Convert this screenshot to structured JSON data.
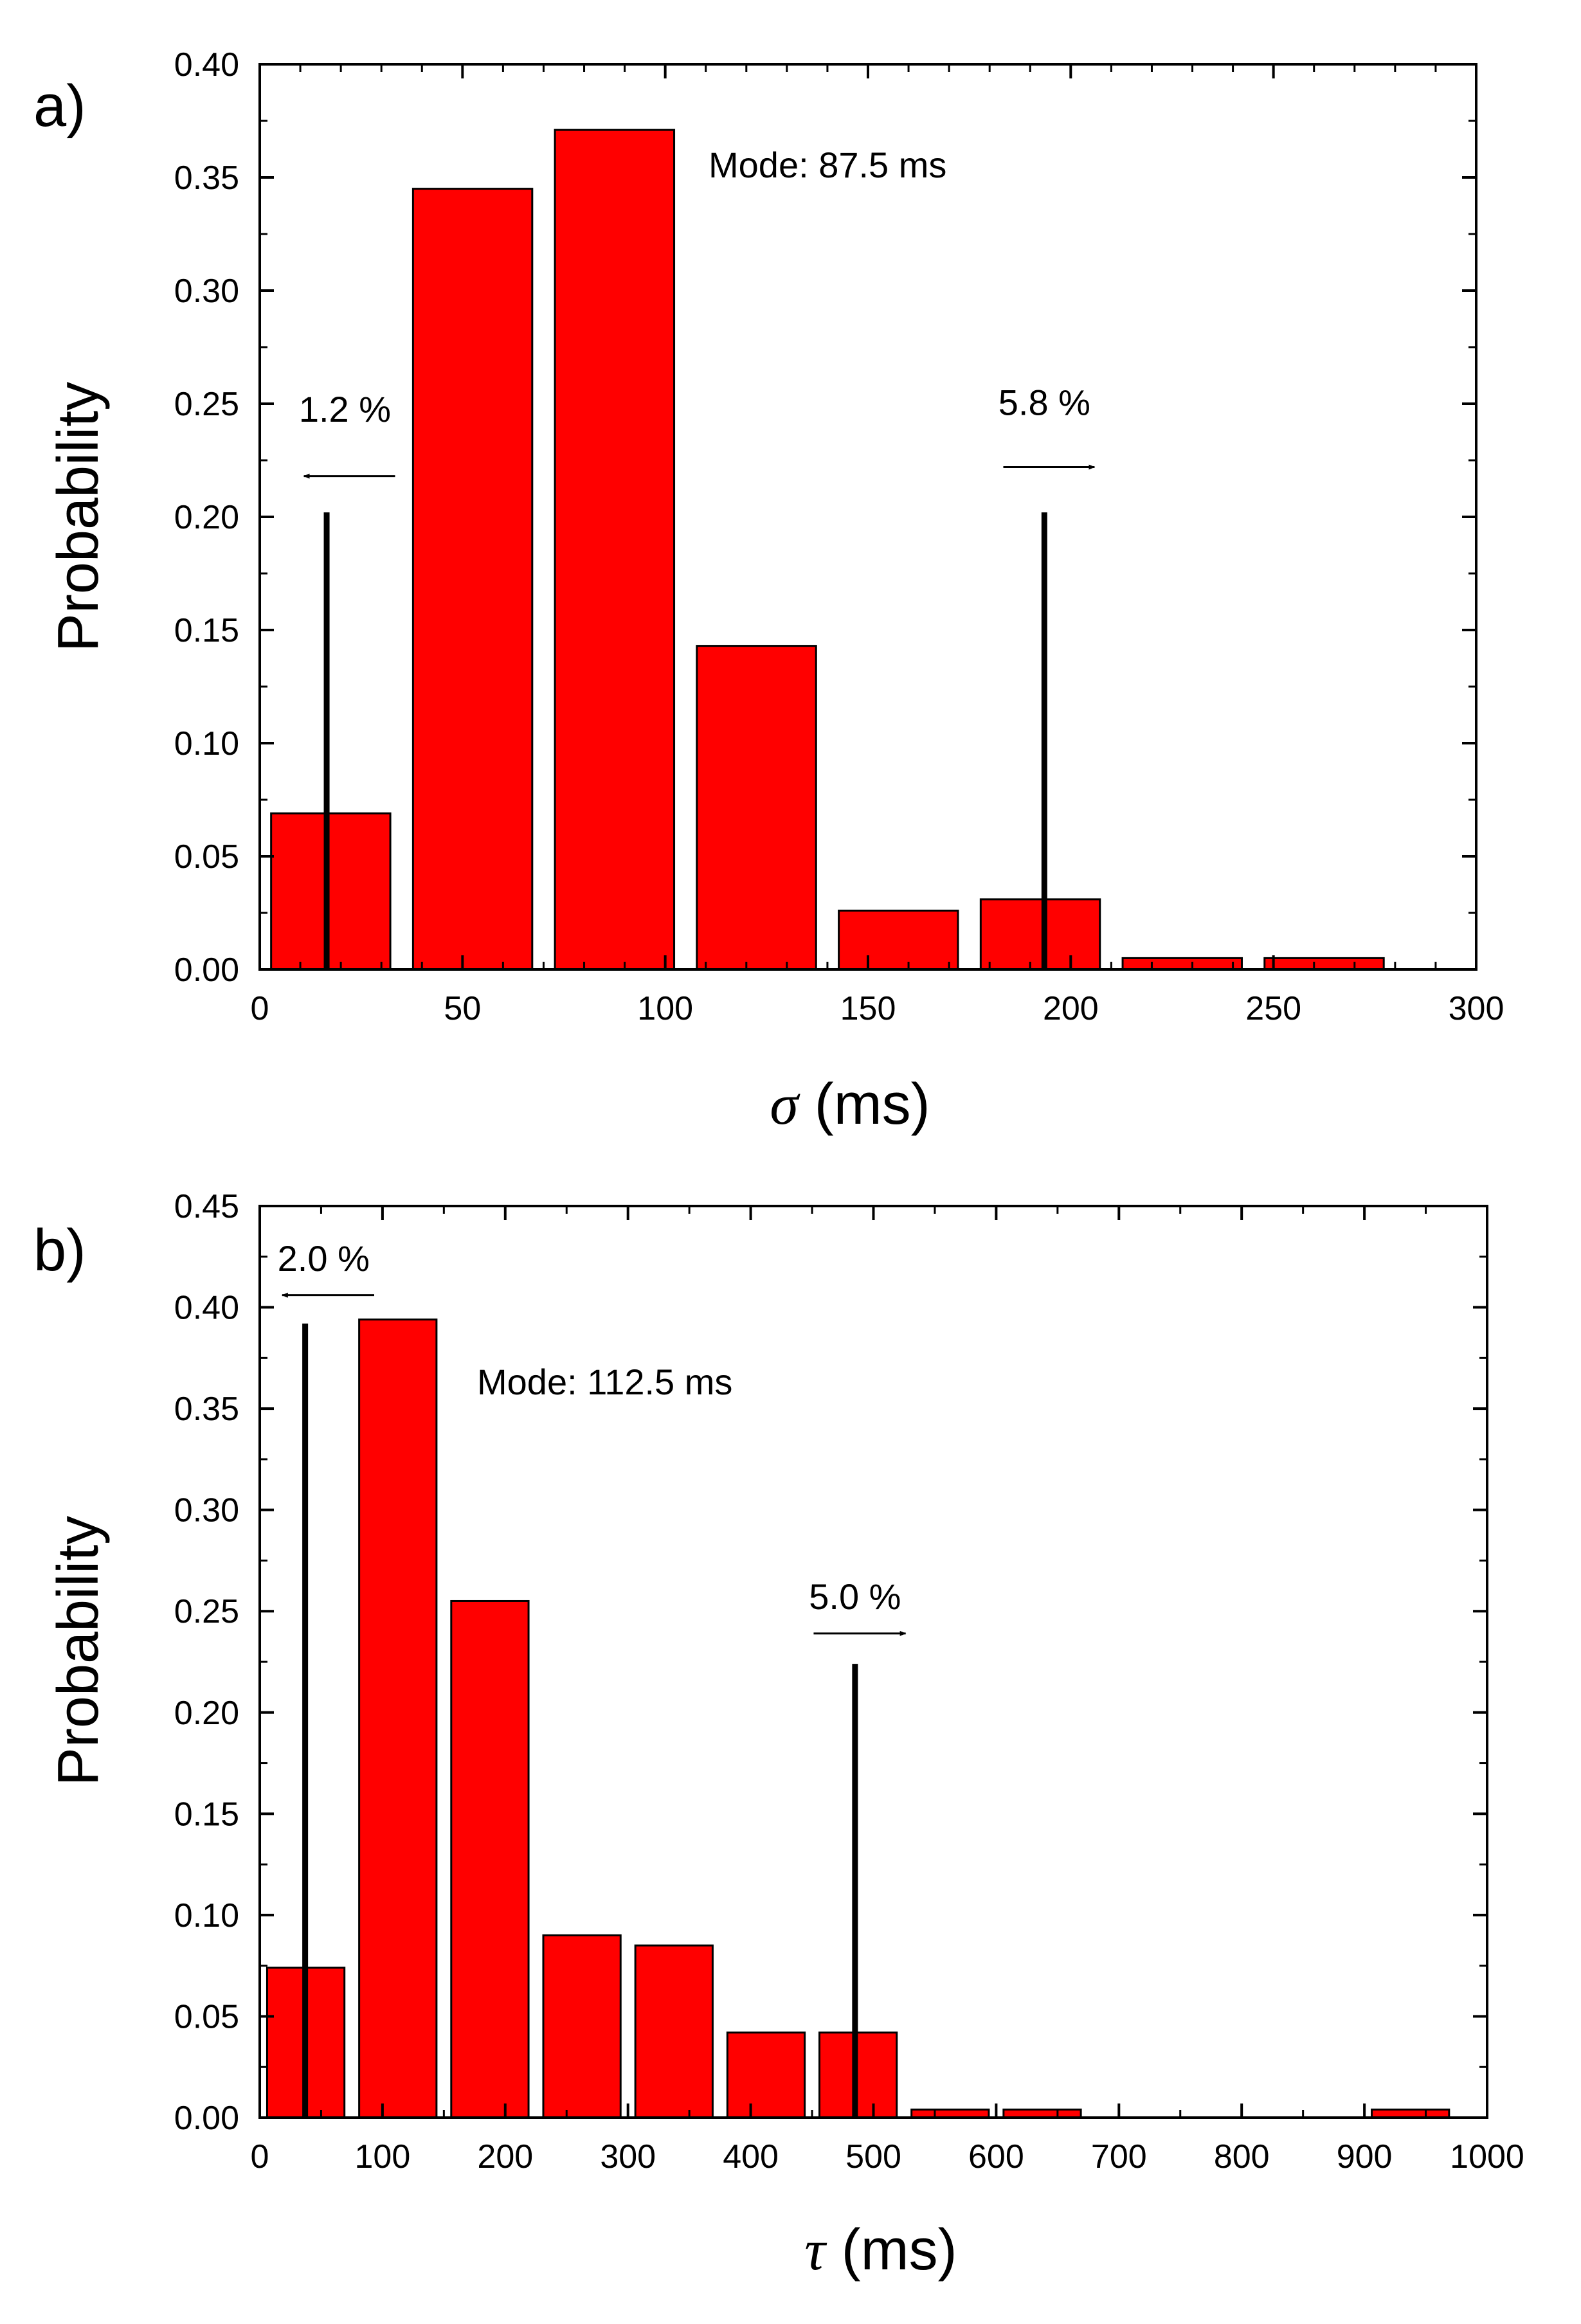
{
  "chart_data": [
    {
      "panel_label": "a)",
      "type": "bar",
      "x_label": "(ms)",
      "x_symbol": "σ",
      "ylabel": "Probability",
      "xlim": [
        0,
        300
      ],
      "ylim": [
        0,
        0.4
      ],
      "x_ticks": [
        "0",
        "50",
        "100",
        "150",
        "200",
        "250",
        "300"
      ],
      "y_ticks": [
        "0.00",
        "0.05",
        "0.10",
        "0.15",
        "0.20",
        "0.25",
        "0.30",
        "0.35",
        "0.40"
      ],
      "bin_width": 35,
      "bins": [
        {
          "center": 17.5,
          "value": 0.069
        },
        {
          "center": 52.5,
          "value": 0.345
        },
        {
          "center": 87.5,
          "value": 0.371
        },
        {
          "center": 122.5,
          "value": 0.143
        },
        {
          "center": 157.5,
          "value": 0.026
        },
        {
          "center": 192.5,
          "value": 0.031
        },
        {
          "center": 227.5,
          "value": 0.005
        },
        {
          "center": 262.5,
          "value": 0.005
        }
      ],
      "mode_text": "Mode: 87.5 ms",
      "markers": [
        {
          "x": 16.5,
          "y_top": 0.202,
          "text": "1.2 %",
          "direction": "left"
        },
        {
          "x": 193.5,
          "y_top": 0.202,
          "text": "5.8 %",
          "direction": "right"
        }
      ]
    },
    {
      "panel_label": "b)",
      "type": "bar",
      "x_label": "(ms)",
      "x_symbol": "τ",
      "ylabel": "Probability",
      "xlim": [
        0,
        1000
      ],
      "ylim": [
        0,
        0.45
      ],
      "x_ticks": [
        "0",
        "100",
        "200",
        "300",
        "400",
        "500",
        "600",
        "700",
        "800",
        "900",
        "1000"
      ],
      "y_ticks": [
        "0.00",
        "0.05",
        "0.10",
        "0.15",
        "0.20",
        "0.25",
        "0.30",
        "0.35",
        "0.40",
        "0.45"
      ],
      "bin_width": 75,
      "bins": [
        {
          "center": 37.5,
          "value": 0.074
        },
        {
          "center": 112.5,
          "value": 0.394
        },
        {
          "center": 187.5,
          "value": 0.255
        },
        {
          "center": 262.5,
          "value": 0.09
        },
        {
          "center": 337.5,
          "value": 0.085
        },
        {
          "center": 412.5,
          "value": 0.042
        },
        {
          "center": 487.5,
          "value": 0.042
        },
        {
          "center": 562.5,
          "value": 0.004
        },
        {
          "center": 637.5,
          "value": 0.004
        },
        {
          "center": 937.5,
          "value": 0.004
        }
      ],
      "mode_text": "Mode: 112.5 ms",
      "markers": [
        {
          "x": 37,
          "y_top": 0.392,
          "text": "2.0 %",
          "direction": "left"
        },
        {
          "x": 485,
          "y_top": 0.224,
          "text": "5.0 %",
          "direction": "right"
        }
      ]
    }
  ]
}
